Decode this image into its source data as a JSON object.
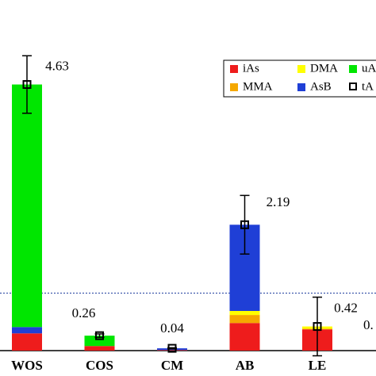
{
  "chart_data": {
    "type": "stacked-bar",
    "categories": [
      "WOS",
      "COS",
      "CM",
      "AB",
      "LE"
    ],
    "series": [
      {
        "name": "iAs",
        "color": "#ee1c1c",
        "values": [
          0.3,
          0.08,
          0.01,
          0.48,
          0.37
        ]
      },
      {
        "name": "MMA",
        "color": "#f5a800",
        "values": [
          0,
          0,
          0,
          0.14,
          0.01
        ]
      },
      {
        "name": "DMA",
        "color": "#ffff00",
        "values": [
          0,
          0,
          0,
          0.07,
          0.04
        ]
      },
      {
        "name": "AsB",
        "color": "#1f3fd6",
        "values": [
          0.11,
          0,
          0.03,
          1.5,
          0
        ]
      },
      {
        "name": "uA",
        "color": "#00e600",
        "values": [
          4.22,
          0.18,
          0,
          0,
          0
        ]
      }
    ],
    "legend_order": [
      0,
      2,
      4,
      1,
      3
    ],
    "total_name": "tA",
    "totals": [
      4.63,
      0.26,
      0.04,
      2.19,
      0.42
    ],
    "errors": [
      0.5,
      0.03,
      0.01,
      0.51,
      0.51
    ],
    "annotations": [
      "0."
    ],
    "reference_line": 1,
    "ylim": [
      0,
      6.1
    ]
  }
}
